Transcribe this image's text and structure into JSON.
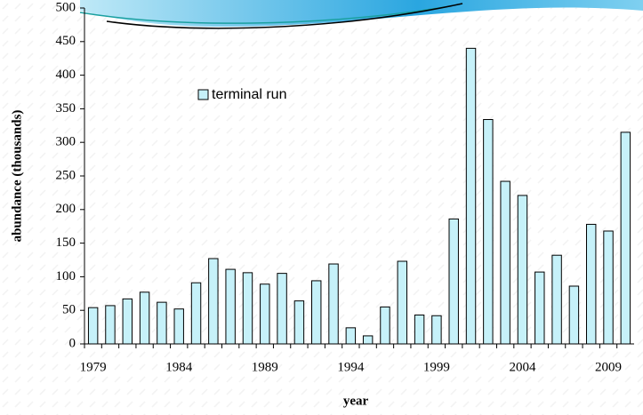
{
  "chart_data": {
    "type": "bar",
    "x_label": "year",
    "y_label": "abundance (thousands)",
    "categories": [
      "1979",
      null,
      null,
      null,
      null,
      "1984",
      null,
      null,
      null,
      null,
      "1989",
      null,
      null,
      null,
      null,
      "1994",
      null,
      null,
      null,
      null,
      "1999",
      null,
      null,
      null,
      null,
      "2004",
      null,
      null,
      null,
      null,
      "2009",
      null
    ],
    "series": [
      {
        "name": "terminal run",
        "color": "#c6f1f9",
        "values": [
          54,
          57,
          67,
          77,
          62,
          52,
          91,
          127,
          111,
          106,
          89,
          105,
          64,
          94,
          119,
          24,
          12,
          55,
          123,
          43,
          42,
          186,
          440,
          334,
          242,
          221,
          107,
          132,
          86,
          178,
          168,
          315
        ]
      }
    ],
    "ylim": [
      0,
      500
    ],
    "yticks": [
      0,
      50,
      100,
      150,
      200,
      250,
      300,
      350,
      400,
      450,
      500
    ]
  }
}
